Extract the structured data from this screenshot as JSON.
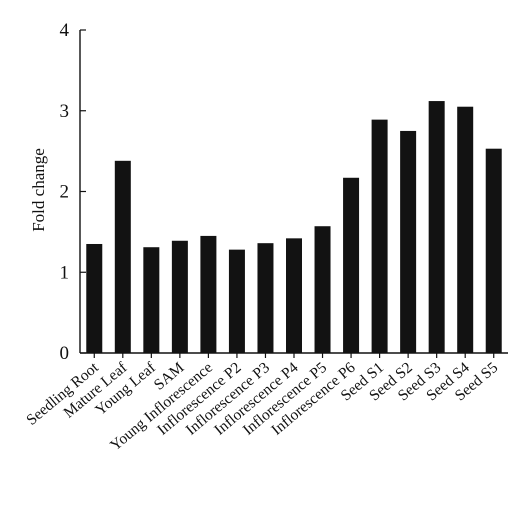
{
  "chart_data": {
    "type": "bar",
    "title": "",
    "xlabel": "",
    "ylabel": "Fold change",
    "ylim": [
      0,
      4
    ],
    "yticks": [
      0,
      1,
      2,
      3,
      4
    ],
    "grid": false,
    "legend": "none",
    "categories": [
      "Seedling Root",
      "Mature Leaf",
      "Young Leaf",
      "SAM",
      "Young Inflorescence",
      "Inflorescence P2",
      "Inflorescence P3",
      "Inflorescence P4",
      "Inflorescence P5",
      "Inflorescence P6",
      "Seed S1",
      "Seed S2",
      "Seed S3",
      "Seed S4",
      "Seed S5"
    ],
    "values": [
      1.35,
      2.38,
      1.31,
      1.39,
      1.45,
      1.28,
      1.36,
      1.42,
      1.57,
      2.17,
      2.89,
      2.75,
      3.12,
      3.05,
      2.53
    ],
    "bar_color": "#121212"
  }
}
